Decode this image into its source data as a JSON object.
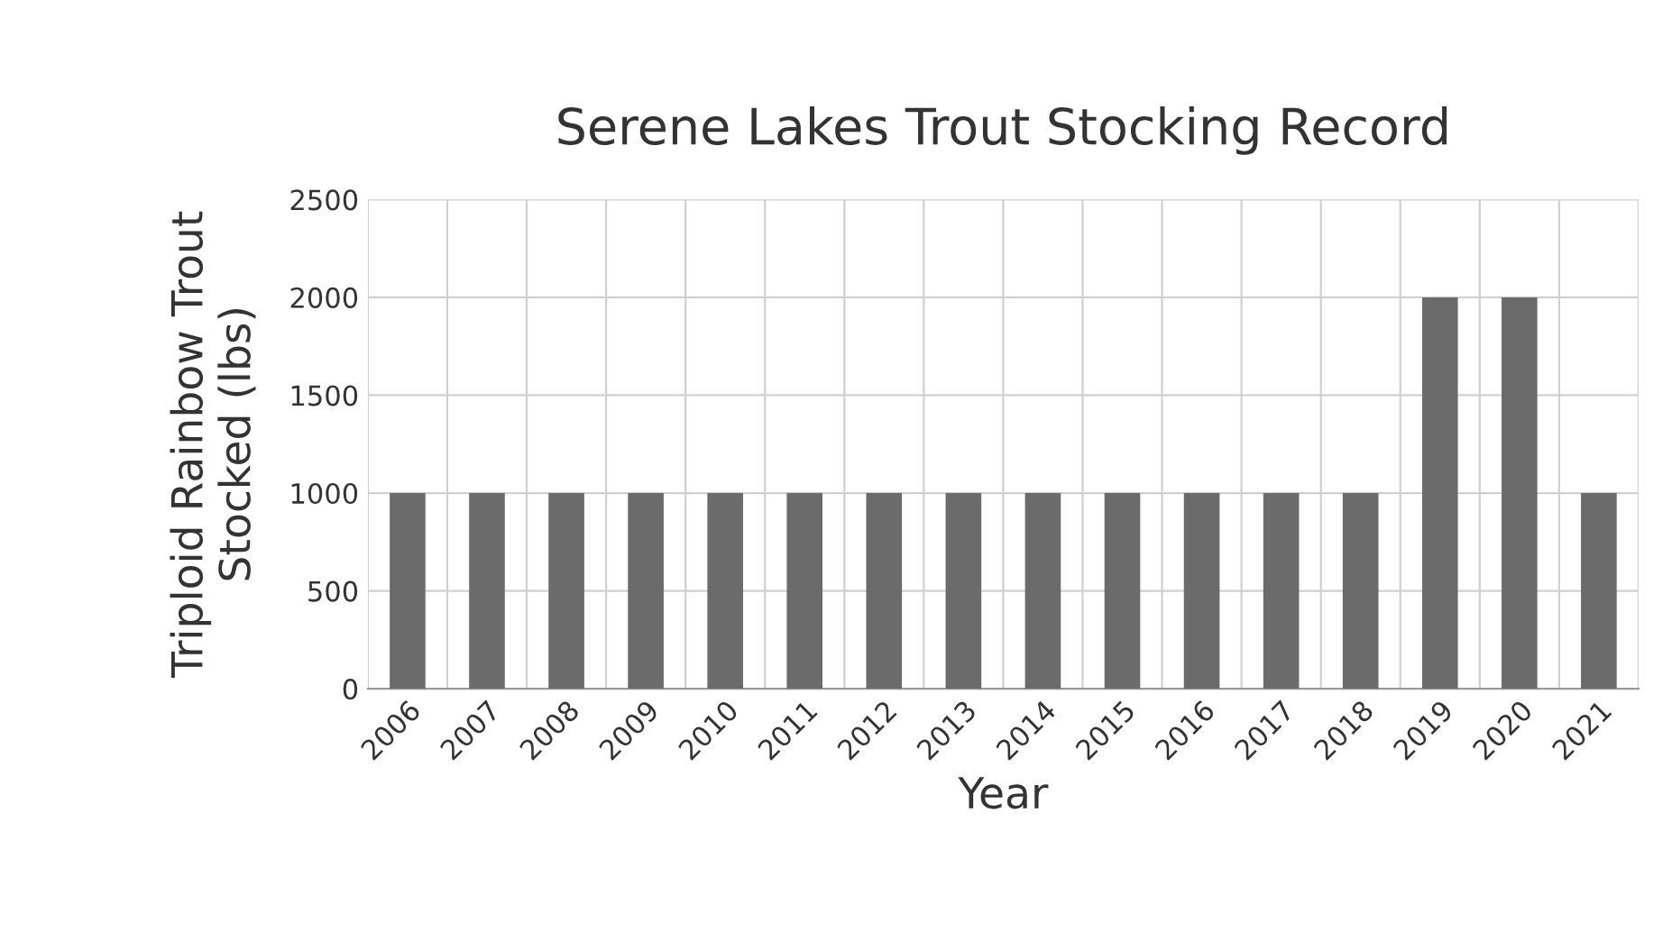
{
  "chart_data": {
    "type": "bar",
    "title": "Serene Lakes Trout Stocking Record",
    "xlabel": "Year",
    "ylabel": "Triploid Rainbow Trout\nStocked (lbs)",
    "categories": [
      "2006",
      "2007",
      "2008",
      "2009",
      "2010",
      "2011",
      "2012",
      "2013",
      "2014",
      "2015",
      "2016",
      "2017",
      "2018",
      "2019",
      "2020",
      "2021"
    ],
    "values": [
      1000,
      1000,
      1000,
      1000,
      1000,
      1000,
      1000,
      1000,
      1000,
      1000,
      1000,
      1000,
      1000,
      2000,
      2000,
      1000
    ],
    "color": "#6b6b6b",
    "ylim": [
      0,
      2500
    ],
    "yticks": [
      0,
      500,
      1000,
      1500,
      2000,
      2500
    ],
    "grid": true,
    "legend": false
  }
}
